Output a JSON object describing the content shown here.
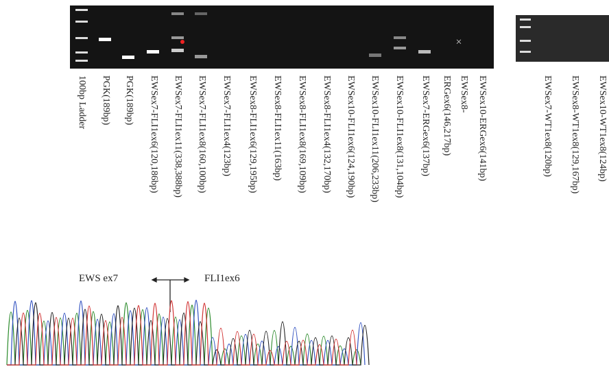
{
  "gel_left": {
    "lanes": [
      "100bp Ladder",
      "PGK(189bp)",
      "PGK(189bp)",
      "EWSex7-FLI1ex6(120,186bp)",
      "EWSex7-FLI1ex11(338,388bp)",
      "EWSex7-FLI1ex8(160,100bp)",
      "EWSex7-FLI1ex4(123bp)",
      "EWSex8-FLI1ex6(129,195bp)",
      "EWSex8-FLI1ex11(163bp)",
      "EWSex8-FLI1ex8(169,109bp)",
      "EWSex8-FLI1ex4(132,170bp)",
      "EWSex10-FLI1ex6(124,190bp)",
      "EWSex10-FLI1ex11(206,233bp)",
      "EWSex10-FLI1ex8(131,104bp)",
      "EWSex7-ERGex6(137bp)",
      [
        "EWSex8-",
        "ERGex6(146,217bp)"
      ],
      "EWSex10-ERGex6(141bp)"
    ]
  },
  "gel_right": {
    "lanes": [
      "EWSex7-WT1ex8(120bp)",
      "EWSex8-WT1ex8(129,167bp)",
      "EWSex10-WT1ex8(124bp)"
    ]
  },
  "sequence": {
    "left_label": "EWS ex7",
    "right_label": "FLI1ex6"
  }
}
